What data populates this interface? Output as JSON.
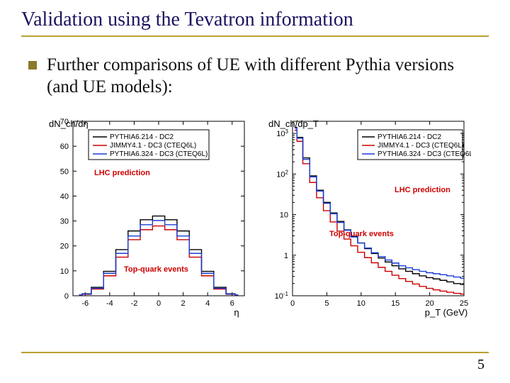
{
  "title": "Validation using the Tevatron information",
  "bullet": "Further comparisons of UE with different Pythia versions (and UE models):",
  "pageNumber": "5",
  "legend": {
    "s1": "PYTHIA6.214 - DC2",
    "s2": "JIMMY4.1 - DC3 (CTEQ6L)",
    "s3": "PYTHIA6.324 - DC3 (CTEQ6L)"
  },
  "colors": {
    "s1": "#000000",
    "s2": "#cc0000",
    "s3": "#1a3fd6",
    "titleColor": "#1a1460",
    "accent": "#b8a030",
    "annot": "#c00000"
  },
  "left": {
    "ylabel": "dN_ch/dη",
    "xlabel": "η",
    "annot1": "LHC prediction",
    "annot2": "Top-quark events",
    "xlim": [
      -7,
      7
    ],
    "ylim": [
      0,
      70
    ],
    "xticks": [
      -6,
      -4,
      -2,
      0,
      2,
      4,
      6
    ],
    "yticks": [
      0,
      10,
      20,
      30,
      40,
      50,
      60,
      70
    ],
    "series": {
      "s1": [
        [
          -6.5,
          0.3
        ],
        [
          -6,
          0.8
        ],
        [
          -5,
          3.4
        ],
        [
          -4,
          9.8
        ],
        [
          -3,
          18.5
        ],
        [
          -2,
          26
        ],
        [
          -1,
          30.5
        ],
        [
          0,
          32
        ],
        [
          1,
          30.5
        ],
        [
          2,
          26
        ],
        [
          3,
          18.5
        ],
        [
          4,
          9.8
        ],
        [
          5,
          3.4
        ],
        [
          6,
          0.8
        ],
        [
          6.5,
          0.3
        ]
      ],
      "s2": [
        [
          -6.5,
          0.3
        ],
        [
          -6,
          0.6
        ],
        [
          -5,
          2.7
        ],
        [
          -4,
          8
        ],
        [
          -3,
          15.5
        ],
        [
          -2,
          22.5
        ],
        [
          -1,
          26.5
        ],
        [
          0,
          28
        ],
        [
          1,
          26.5
        ],
        [
          2,
          22.5
        ],
        [
          3,
          15.5
        ],
        [
          4,
          8
        ],
        [
          5,
          2.7
        ],
        [
          6,
          0.6
        ],
        [
          6.5,
          0.3
        ]
      ],
      "s3": [
        [
          -6.5,
          0.3
        ],
        [
          -6,
          0.7
        ],
        [
          -5,
          3.0
        ],
        [
          -4,
          9
        ],
        [
          -3,
          17
        ],
        [
          -2,
          24
        ],
        [
          -1,
          28.5
        ],
        [
          0,
          30.2
        ],
        [
          1,
          28.5
        ],
        [
          2,
          24
        ],
        [
          3,
          17
        ],
        [
          4,
          9
        ],
        [
          5,
          3.0
        ],
        [
          6,
          0.7
        ],
        [
          6.5,
          0.3
        ]
      ]
    }
  },
  "right": {
    "ylabel": "dN_ch/dp_T",
    "xlabel": "p_T (GeV)",
    "annot1": "LHC prediction",
    "annot2": "Top-quark events",
    "xlim": [
      0,
      25
    ],
    "xticks": [
      0,
      5,
      10,
      15,
      20,
      25
    ],
    "ylog_exp": [
      -1,
      0,
      1,
      2,
      3
    ],
    "series": {
      "s1": [
        [
          0.3,
          1400
        ],
        [
          1,
          800
        ],
        [
          2,
          250
        ],
        [
          3,
          90
        ],
        [
          4,
          40
        ],
        [
          5,
          20
        ],
        [
          6,
          11
        ],
        [
          7,
          6.8
        ],
        [
          8,
          4.2
        ],
        [
          9,
          2.9
        ],
        [
          10,
          2.0
        ],
        [
          11,
          1.45
        ],
        [
          12,
          1.1
        ],
        [
          13,
          0.85
        ],
        [
          14,
          0.68
        ],
        [
          15,
          0.55
        ],
        [
          16,
          0.46
        ],
        [
          17,
          0.4
        ],
        [
          18,
          0.35
        ],
        [
          19,
          0.31
        ],
        [
          20,
          0.28
        ],
        [
          21,
          0.26
        ],
        [
          22,
          0.24
        ],
        [
          23,
          0.22
        ],
        [
          24,
          0.2
        ],
        [
          25,
          0.19
        ]
      ],
      "s2": [
        [
          0.3,
          1200
        ],
        [
          1,
          640
        ],
        [
          2,
          180
        ],
        [
          3,
          62
        ],
        [
          4,
          26
        ],
        [
          5,
          12.5
        ],
        [
          6,
          6.6
        ],
        [
          7,
          3.9
        ],
        [
          8,
          2.5
        ],
        [
          9,
          1.7
        ],
        [
          10,
          1.18
        ],
        [
          11,
          0.87
        ],
        [
          12,
          0.65
        ],
        [
          13,
          0.5
        ],
        [
          14,
          0.4
        ],
        [
          15,
          0.32
        ],
        [
          16,
          0.265
        ],
        [
          17,
          0.225
        ],
        [
          18,
          0.195
        ],
        [
          19,
          0.17
        ],
        [
          20,
          0.152
        ],
        [
          21,
          0.14
        ],
        [
          22,
          0.13
        ],
        [
          23,
          0.122
        ],
        [
          24,
          0.115
        ],
        [
          25,
          0.11
        ]
      ],
      "s3": [
        [
          0.3,
          1350
        ],
        [
          1,
          760
        ],
        [
          2,
          230
        ],
        [
          3,
          85
        ],
        [
          4,
          38
        ],
        [
          5,
          19
        ],
        [
          6,
          10.5
        ],
        [
          7,
          6.4
        ],
        [
          8,
          4.1
        ],
        [
          9,
          2.8
        ],
        [
          10,
          2.0
        ],
        [
          11,
          1.5
        ],
        [
          12,
          1.15
        ],
        [
          13,
          0.92
        ],
        [
          14,
          0.76
        ],
        [
          15,
          0.64
        ],
        [
          16,
          0.55
        ],
        [
          17,
          0.49
        ],
        [
          18,
          0.44
        ],
        [
          19,
          0.4
        ],
        [
          20,
          0.37
        ],
        [
          21,
          0.35
        ],
        [
          22,
          0.33
        ],
        [
          23,
          0.31
        ],
        [
          24,
          0.29
        ],
        [
          25,
          0.27
        ]
      ]
    }
  }
}
